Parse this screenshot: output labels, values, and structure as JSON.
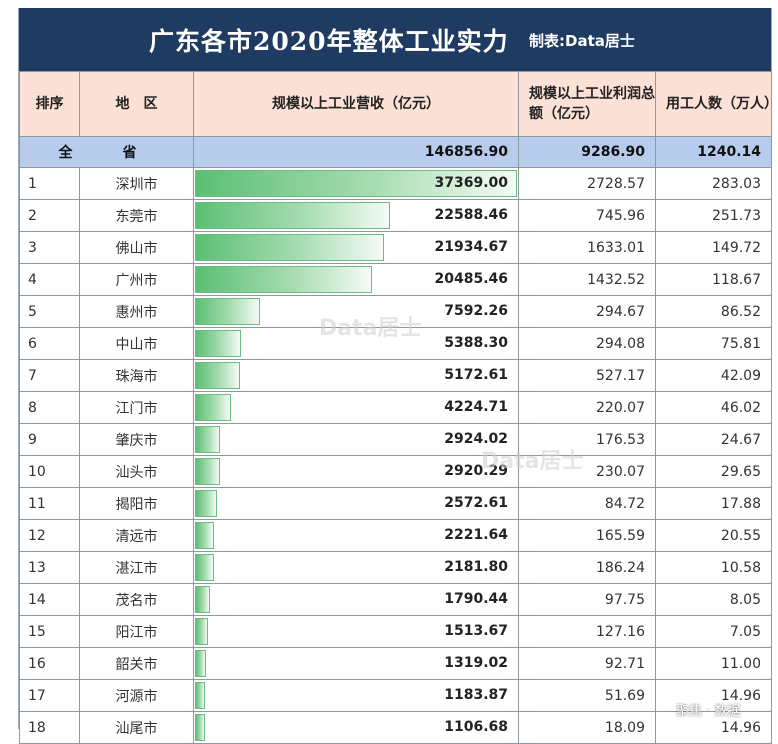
{
  "title": "广东各市2020年整体工业实力",
  "credit": "制表:Data居士",
  "headers": {
    "rank": "排序",
    "region": "地　区",
    "revenue": "规模以上工业营收（亿元）",
    "profit": "规模以上工业利润总额（亿元）",
    "employees": "用工人数（万人）"
  },
  "total": {
    "label": "全　省",
    "revenue": "146856.90",
    "profit": "9286.90",
    "employees": "1240.14"
  },
  "watermark": "Data居士",
  "corner_text": "聚焦 · 数据",
  "colors": {
    "title_bg": "#1f3b61",
    "header_bg": "#fbe1d6",
    "total_bg": "#b7ccec",
    "bar": "#5cbf74"
  },
  "chart_data": {
    "type": "table",
    "title": "广东各市2020年整体工业实力",
    "columns": [
      "排序",
      "地区",
      "规模以上工业营收（亿元）",
      "规模以上工业利润总额（亿元）",
      "用工人数（万人）"
    ],
    "bar_column": "规模以上工业营收（亿元）",
    "bar_max": 37369.0,
    "rows": [
      {
        "rank": "1",
        "city": "深圳市",
        "revenue": "37369.00",
        "profit": "2728.57",
        "employees": "283.03"
      },
      {
        "rank": "2",
        "city": "东莞市",
        "revenue": "22588.46",
        "profit": "745.96",
        "employees": "251.73"
      },
      {
        "rank": "3",
        "city": "佛山市",
        "revenue": "21934.67",
        "profit": "1633.01",
        "employees": "149.72"
      },
      {
        "rank": "4",
        "city": "广州市",
        "revenue": "20485.46",
        "profit": "1432.52",
        "employees": "118.67"
      },
      {
        "rank": "5",
        "city": "惠州市",
        "revenue": "7592.26",
        "profit": "294.67",
        "employees": "86.52"
      },
      {
        "rank": "6",
        "city": "中山市",
        "revenue": "5388.30",
        "profit": "294.08",
        "employees": "75.81"
      },
      {
        "rank": "7",
        "city": "珠海市",
        "revenue": "5172.61",
        "profit": "527.17",
        "employees": "42.09"
      },
      {
        "rank": "8",
        "city": "江门市",
        "revenue": "4224.71",
        "profit": "220.07",
        "employees": "46.02"
      },
      {
        "rank": "9",
        "city": "肇庆市",
        "revenue": "2924.02",
        "profit": "176.53",
        "employees": "24.67"
      },
      {
        "rank": "10",
        "city": "汕头市",
        "revenue": "2920.29",
        "profit": "230.07",
        "employees": "29.65"
      },
      {
        "rank": "11",
        "city": "揭阳市",
        "revenue": "2572.61",
        "profit": "84.72",
        "employees": "17.88"
      },
      {
        "rank": "12",
        "city": "清远市",
        "revenue": "2221.64",
        "profit": "165.59",
        "employees": "20.55"
      },
      {
        "rank": "13",
        "city": "湛江市",
        "revenue": "2181.80",
        "profit": "186.24",
        "employees": "10.58"
      },
      {
        "rank": "14",
        "city": "茂名市",
        "revenue": "1790.44",
        "profit": "97.75",
        "employees": "8.05"
      },
      {
        "rank": "15",
        "city": "阳江市",
        "revenue": "1513.67",
        "profit": "127.16",
        "employees": "7.05"
      },
      {
        "rank": "16",
        "city": "韶关市",
        "revenue": "1319.02",
        "profit": "92.71",
        "employees": "11.00"
      },
      {
        "rank": "17",
        "city": "河源市",
        "revenue": "1183.87",
        "profit": "51.69",
        "employees": "14.96"
      },
      {
        "rank": "18",
        "city": "汕尾市",
        "revenue": "1106.68",
        "profit": "18.09",
        "employees": "14.96"
      }
    ]
  }
}
